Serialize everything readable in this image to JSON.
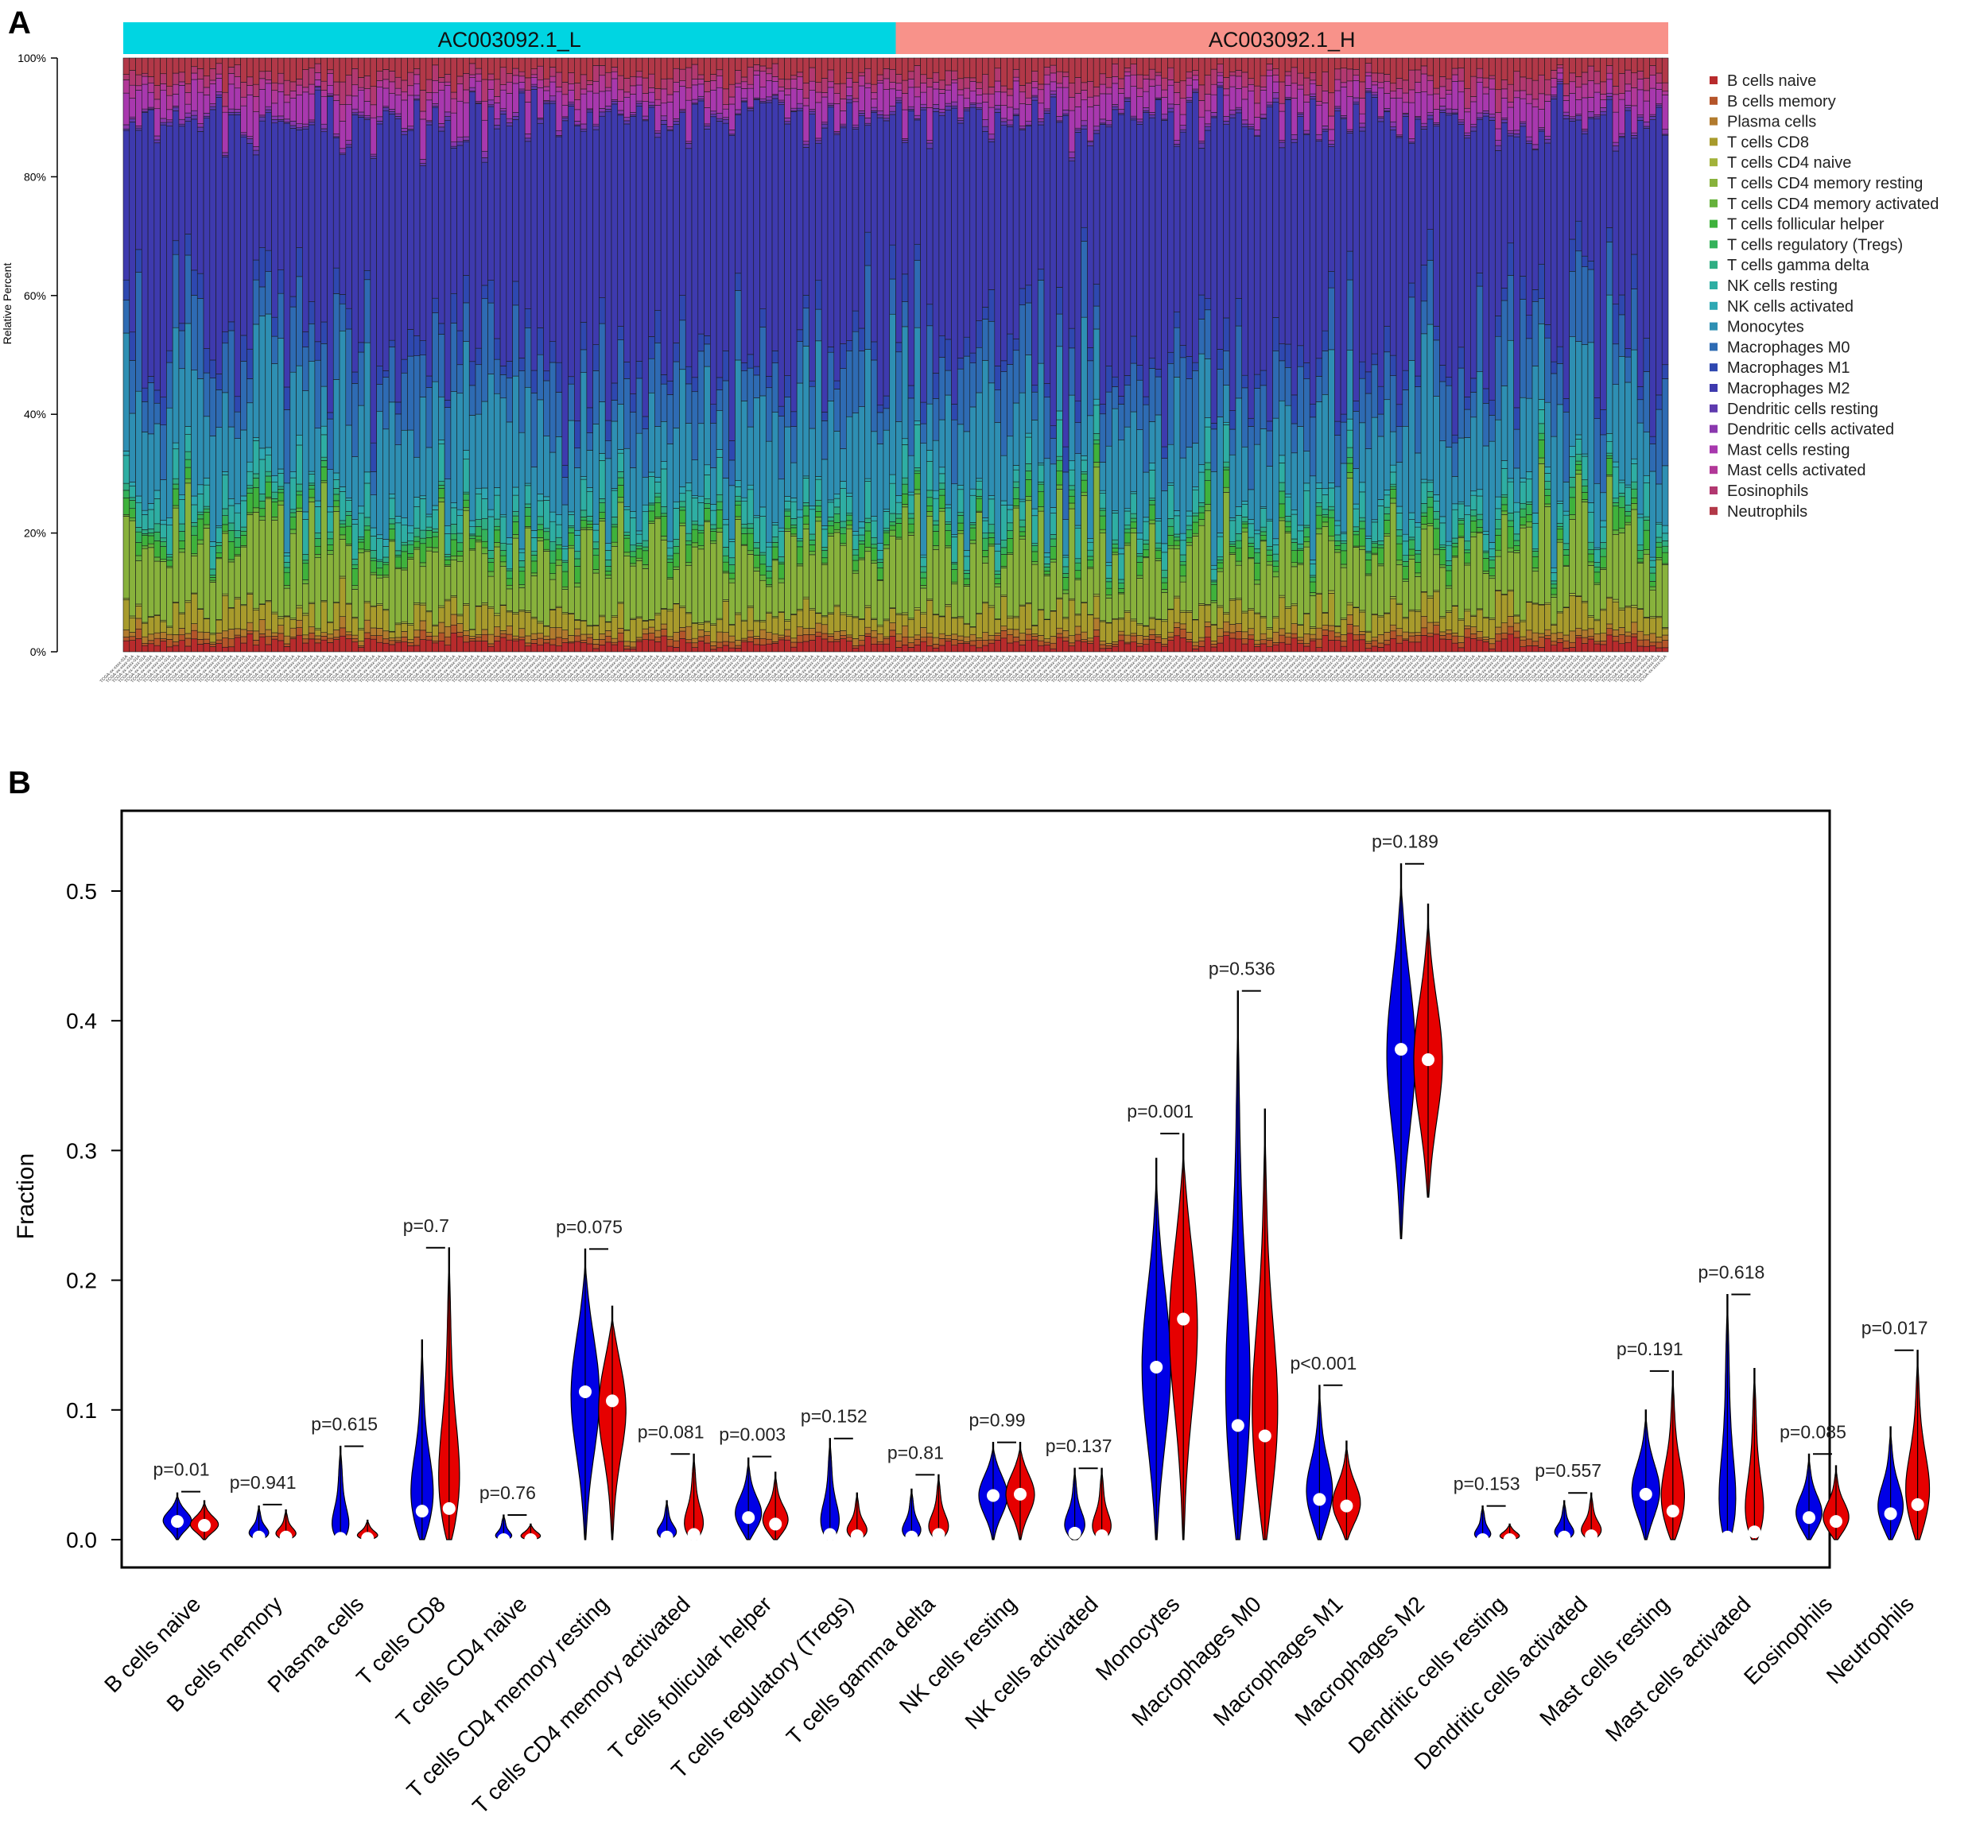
{
  "panel_a": {
    "letter": "A",
    "groups": [
      "AC003092.1_L",
      "AC003092.1_H"
    ],
    "group_colors": [
      "#00D5E2",
      "#F8928A"
    ],
    "ylabel": "Relative Percent",
    "yticks": [
      "0%",
      "20%",
      "40%",
      "60%",
      "80%",
      "100%"
    ],
    "legend": [
      {
        "label": "B cells naive",
        "color": "#B82B2C"
      },
      {
        "label": "B cells memory",
        "color": "#B5552A"
      },
      {
        "label": "Plasma cells",
        "color": "#B27B2E"
      },
      {
        "label": "T cells CD8",
        "color": "#A89B2C"
      },
      {
        "label": "T cells CD4 naive",
        "color": "#A2B23A"
      },
      {
        "label": "T cells CD4 memory resting",
        "color": "#88B23C"
      },
      {
        "label": "T cells CD4 memory activated",
        "color": "#66B23C"
      },
      {
        "label": "T cells follicular helper",
        "color": "#3FB23C"
      },
      {
        "label": "T cells regulatory (Tregs)",
        "color": "#34B25A"
      },
      {
        "label": "T cells gamma delta",
        "color": "#2FAE83"
      },
      {
        "label": "NK cells resting",
        "color": "#2EAEA3"
      },
      {
        "label": "NK cells activated",
        "color": "#2EA8B3"
      },
      {
        "label": "Monocytes",
        "color": "#2E8FB3"
      },
      {
        "label": "Macrophages M0",
        "color": "#2E6BB3"
      },
      {
        "label": "Macrophages M1",
        "color": "#2E48B0"
      },
      {
        "label": "Macrophages M2",
        "color": "#3E3AAE"
      },
      {
        "label": "Dendritic cells resting",
        "color": "#5E3AAE"
      },
      {
        "label": "Dendritic cells activated",
        "color": "#8A38AE"
      },
      {
        "label": "Mast cells resting",
        "color": "#A838AE"
      },
      {
        "label": "Mast cells activated",
        "color": "#B23898"
      },
      {
        "label": "Eosinophils",
        "color": "#B23870"
      },
      {
        "label": "Neutrophils",
        "color": "#B23848"
      }
    ],
    "sample_label": "TCGA-xx-xxxx-01A"
  },
  "panel_b": {
    "letter": "B",
    "series_colors": [
      "#0000E6",
      "#E60000"
    ]
  },
  "chart_data": [
    {
      "type": "bar",
      "title": "",
      "stacked": true,
      "xlabel": "",
      "ylabel": "Relative Percent",
      "ylim": [
        0,
        100
      ],
      "n_samples_per_group": [
        125,
        125
      ],
      "series_names": [
        "B cells naive",
        "B cells memory",
        "Plasma cells",
        "T cells CD8",
        "T cells CD4 naive",
        "T cells CD4 memory resting",
        "T cells CD4 memory activated",
        "T cells follicular helper",
        "T cells regulatory (Tregs)",
        "T cells gamma delta",
        "NK cells resting",
        "NK cells activated",
        "Monocytes",
        "Macrophages M0",
        "Macrophages M1",
        "Macrophages M2",
        "Dendritic cells resting",
        "Dendritic cells activated",
        "Mast cells resting",
        "Mast cells activated",
        "Eosinophils",
        "Neutrophils"
      ],
      "mean_composition_percent": [
        1.5,
        0.8,
        1.0,
        3.0,
        0.2,
        11.0,
        0.5,
        1.8,
        1.0,
        0.8,
        3.5,
        0.9,
        14.0,
        9.0,
        3.0,
        37.5,
        0.4,
        0.5,
        3.5,
        1.5,
        1.8,
        2.8
      ]
    },
    {
      "type": "violin",
      "title": "",
      "xlabel": "",
      "ylabel": "Fraction",
      "ylim": [
        0,
        0.55
      ],
      "yticks": [
        "0.0",
        "0.1",
        "0.2",
        "0.3",
        "0.4",
        "0.5"
      ],
      "series": [
        {
          "name": "AC003092.1_L"
        },
        {
          "name": "AC003092.1_H"
        }
      ],
      "categories": [
        {
          "name": "B cells naive",
          "p": "p=0.01",
          "bar": 0.037,
          "low": {
            "median": 0.014,
            "max": 0.036
          },
          "high": {
            "median": 0.011,
            "max": 0.03
          }
        },
        {
          "name": "B cells memory",
          "p": "p=0.941",
          "bar": 0.027,
          "low": {
            "median": 0.002,
            "max": 0.026
          },
          "high": {
            "median": 0.002,
            "max": 0.023
          }
        },
        {
          "name": "Plasma cells",
          "p": "p=0.615",
          "bar": 0.072,
          "low": {
            "median": 0.001,
            "max": 0.072
          },
          "high": {
            "median": 0.001,
            "max": 0.015
          }
        },
        {
          "name": "T cells CD8",
          "p": "p=0.7",
          "bar": 0.225,
          "low": {
            "median": 0.022,
            "max": 0.154
          },
          "high": {
            "median": 0.024,
            "max": 0.225
          }
        },
        {
          "name": "T cells CD4 naive",
          "p": "p=0.76",
          "bar": 0.019,
          "low": {
            "median": 0.0,
            "max": 0.019
          },
          "high": {
            "median": 0.0,
            "max": 0.012
          }
        },
        {
          "name": "T cells CD4 memory resting",
          "p": "p=0.075",
          "bar": 0.224,
          "low": {
            "median": 0.114,
            "max": 0.224
          },
          "high": {
            "median": 0.107,
            "max": 0.18
          }
        },
        {
          "name": "T cells CD4 memory activated",
          "p": "p=0.081",
          "bar": 0.066,
          "low": {
            "median": 0.002,
            "max": 0.03
          },
          "high": {
            "median": 0.004,
            "max": 0.066
          }
        },
        {
          "name": "T cells follicular helper",
          "p": "p=0.003",
          "bar": 0.064,
          "low": {
            "median": 0.017,
            "max": 0.063
          },
          "high": {
            "median": 0.012,
            "max": 0.052
          }
        },
        {
          "name": "T cells regulatory (Tregs)",
          "p": "p=0.152",
          "bar": 0.078,
          "low": {
            "median": 0.004,
            "max": 0.078
          },
          "high": {
            "median": 0.003,
            "max": 0.036
          }
        },
        {
          "name": "T cells gamma delta",
          "p": "p=0.81",
          "bar": 0.05,
          "low": {
            "median": 0.002,
            "max": 0.039
          },
          "high": {
            "median": 0.004,
            "max": 0.05
          }
        },
        {
          "name": "NK cells resting",
          "p": "p=0.99",
          "bar": 0.075,
          "low": {
            "median": 0.034,
            "max": 0.075
          },
          "high": {
            "median": 0.035,
            "max": 0.075
          }
        },
        {
          "name": "NK cells activated",
          "p": "p=0.137",
          "bar": 0.055,
          "low": {
            "median": 0.005,
            "max": 0.055
          },
          "high": {
            "median": 0.003,
            "max": 0.055
          }
        },
        {
          "name": "Monocytes",
          "p": "p=0.001",
          "bar": 0.313,
          "low": {
            "median": 0.133,
            "max": 0.294
          },
          "high": {
            "median": 0.17,
            "max": 0.313
          }
        },
        {
          "name": "Macrophages M0",
          "p": "p=0.536",
          "bar": 0.423,
          "low": {
            "median": 0.088,
            "max": 0.423
          },
          "high": {
            "median": 0.08,
            "max": 0.332
          }
        },
        {
          "name": "Macrophages M1",
          "p": "p<0.001",
          "bar": 0.119,
          "low": {
            "median": 0.031,
            "max": 0.119
          },
          "high": {
            "median": 0.026,
            "max": 0.076
          }
        },
        {
          "name": "Macrophages M2",
          "p": "p=0.189",
          "bar": 0.521,
          "low": {
            "median": 0.378,
            "max": 0.521,
            "min": 0.232
          },
          "high": {
            "median": 0.37,
            "max": 0.49,
            "min": 0.264
          }
        },
        {
          "name": "Dendritic cells resting",
          "p": "p=0.153",
          "bar": 0.026,
          "low": {
            "median": 0.0,
            "max": 0.026
          },
          "high": {
            "median": 0.0,
            "max": 0.012
          }
        },
        {
          "name": "Dendritic cells activated",
          "p": "p=0.557",
          "bar": 0.036,
          "low": {
            "median": 0.002,
            "max": 0.03
          },
          "high": {
            "median": 0.003,
            "max": 0.036
          }
        },
        {
          "name": "Mast cells resting",
          "p": "p=0.191",
          "bar": 0.13,
          "low": {
            "median": 0.035,
            "max": 0.1
          },
          "high": {
            "median": 0.022,
            "max": 0.13
          }
        },
        {
          "name": "Mast cells activated",
          "p": "p=0.618",
          "bar": 0.189,
          "low": {
            "median": 0.002,
            "max": 0.189
          },
          "high": {
            "median": 0.006,
            "max": 0.132
          }
        },
        {
          "name": "Eosinophils",
          "p": "p=0.085",
          "bar": 0.066,
          "low": {
            "median": 0.017,
            "max": 0.066
          },
          "high": {
            "median": 0.014,
            "max": 0.057
          }
        },
        {
          "name": "Neutrophils",
          "p": "p=0.017",
          "bar": 0.146,
          "low": {
            "median": 0.02,
            "max": 0.087
          },
          "high": {
            "median": 0.027,
            "max": 0.146
          }
        }
      ]
    }
  ]
}
